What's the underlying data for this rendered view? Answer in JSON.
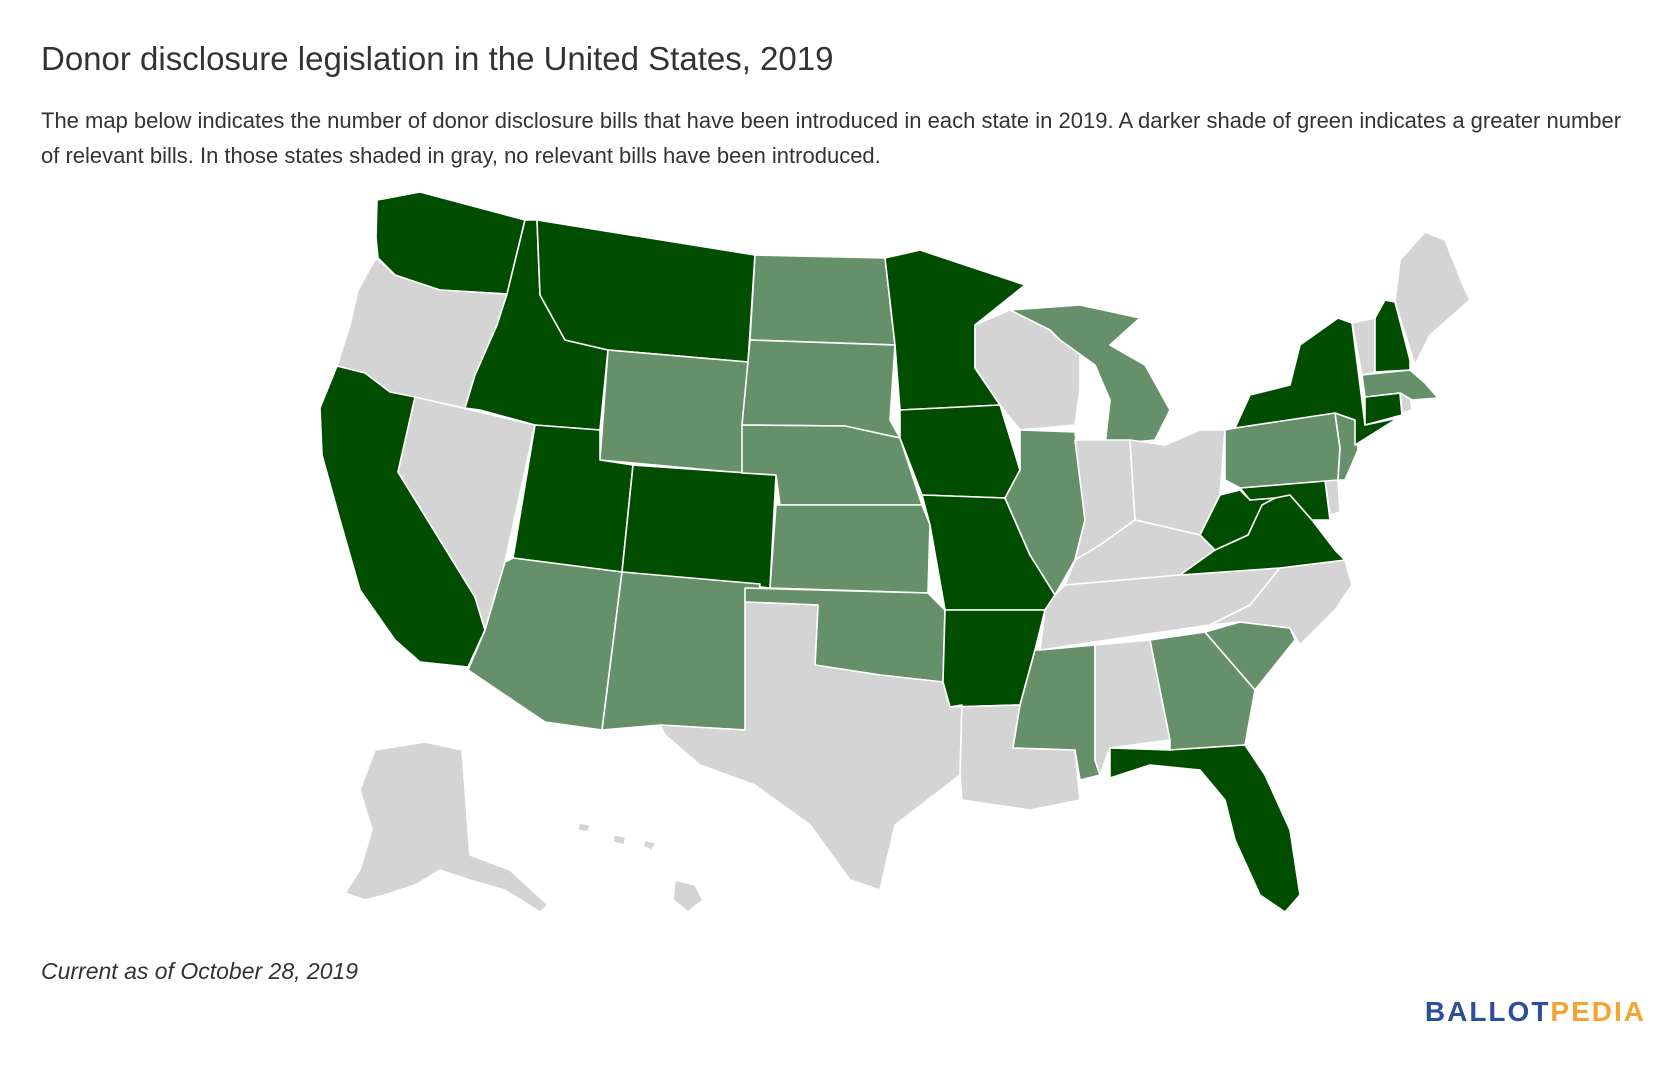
{
  "header": {
    "title": "Donor disclosure legislation in the United States, 2019",
    "description": "The map below indicates the number of donor disclosure bills that have been introduced in each state in 2019. A darker shade of green indicates a greater number of relevant bills. In those states shaded in gray, no relevant bills have been introduced."
  },
  "footer": {
    "note": "Current as of October 28, 2019",
    "logo_part1": "BALLOT",
    "logo_part2": "PEDIA"
  },
  "colors": {
    "dark_green": "#004d00",
    "medium_green": "#66906a",
    "gray": "#d4d4d4",
    "logo_blue": "#2b4f9e",
    "logo_gold": "#f3a531"
  },
  "map": {
    "legend_levels": [
      "gray",
      "medium_green",
      "dark_green"
    ],
    "states": {
      "WA": "dark_green",
      "OR": "gray",
      "CA": "dark_green",
      "NV": "gray",
      "ID": "dark_green",
      "MT": "dark_green",
      "WY": "medium_green",
      "UT": "dark_green",
      "AZ": "medium_green",
      "CO": "dark_green",
      "NM": "medium_green",
      "ND": "medium_green",
      "SD": "medium_green",
      "NE": "medium_green",
      "KS": "medium_green",
      "OK": "medium_green",
      "TX": "gray",
      "MN": "dark_green",
      "IA": "dark_green",
      "MO": "dark_green",
      "AR": "dark_green",
      "LA": "gray",
      "WI": "gray",
      "IL": "medium_green",
      "MI": "medium_green",
      "IN": "gray",
      "OH": "gray",
      "KY": "gray",
      "TN": "gray",
      "MS": "medium_green",
      "AL": "gray",
      "GA": "medium_green",
      "FL": "dark_green",
      "SC": "medium_green",
      "NC": "gray",
      "VA": "dark_green",
      "WV": "dark_green",
      "MD": "dark_green",
      "DE": "gray",
      "PA": "medium_green",
      "NJ": "medium_green",
      "NY": "dark_green",
      "CT": "dark_green",
      "RI": "gray",
      "MA": "medium_green",
      "VT": "gray",
      "NH": "dark_green",
      "ME": "gray",
      "AK": "gray",
      "HI": "gray"
    }
  }
}
